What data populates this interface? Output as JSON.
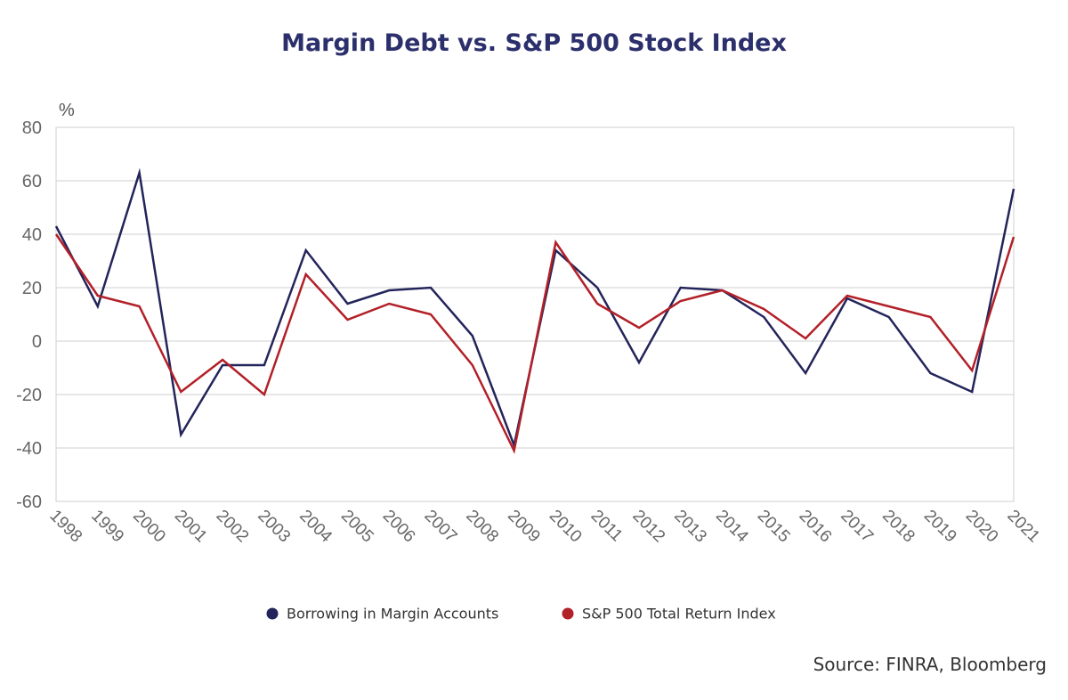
{
  "chart_data": {
    "type": "line",
    "title": "Margin Debt vs. S&P 500 Stock Index",
    "ylabel": "%",
    "xlabel": "",
    "categories": [
      "1998",
      "1999",
      "2000",
      "2001",
      "2002",
      "2003",
      "2004",
      "2005",
      "2006",
      "2007",
      "2008",
      "2009",
      "2010",
      "2011",
      "2012",
      "2013",
      "2014",
      "2015",
      "2016",
      "2017",
      "2018",
      "2019",
      "2020",
      "2021"
    ],
    "ylim": [
      -60,
      80
    ],
    "yticks": [
      80,
      60,
      40,
      20,
      0,
      -20,
      -40,
      -60
    ],
    "grid": true,
    "legend_position": "bottom",
    "series": [
      {
        "name": "Borrowing in Margin Accounts",
        "color": "#23245a",
        "values": [
          43,
          13,
          63,
          -35,
          -9,
          -9,
          34,
          14,
          19,
          20,
          2,
          -39,
          34,
          20,
          -8,
          20,
          19,
          9,
          -12,
          16,
          9,
          -12,
          -19,
          57
        ]
      },
      {
        "name": "S&P 500 Total Return Index",
        "color": "#b22028",
        "values": [
          40,
          17,
          13,
          -19,
          -7,
          -20,
          25,
          8,
          14,
          10,
          -9,
          -41,
          37,
          14,
          5,
          15,
          19,
          12,
          1,
          17,
          13,
          9,
          -11,
          39
        ]
      }
    ],
    "source": "Source: FINRA, Bloomberg"
  }
}
